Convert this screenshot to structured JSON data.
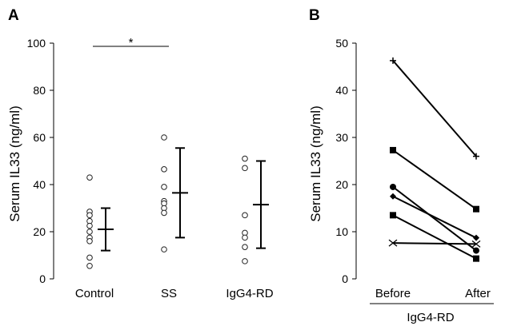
{
  "chart_data": [
    {
      "panel": "A",
      "type": "scatter",
      "ylabel": "Serum IL33 (ng/ml)",
      "ylim": [
        0,
        100
      ],
      "yticks": [
        0,
        20,
        40,
        60,
        80,
        100
      ],
      "categories": [
        "Control",
        "SS",
        "IgG4-RD"
      ],
      "points": [
        [
          43,
          28.5,
          27,
          24.5,
          22.5,
          20,
          17.5,
          16,
          9,
          5.5
        ],
        [
          60,
          46.5,
          39,
          33,
          32,
          30,
          28,
          12.5
        ],
        [
          51,
          47,
          27,
          19.5,
          17.5,
          13.5,
          7.5
        ]
      ],
      "means": [
        21,
        36.5,
        31.5
      ],
      "sd_low": [
        12,
        17.5,
        13
      ],
      "sd_high": [
        30,
        55.5,
        50
      ],
      "significance": {
        "from": "Control",
        "to": "SS",
        "label": "*"
      }
    },
    {
      "panel": "B",
      "type": "line",
      "ylabel": "Serum IL33 (ng/ml)",
      "xlabel": "IgG4-RD",
      "ylim": [
        0,
        50
      ],
      "yticks": [
        0,
        10,
        20,
        30,
        40,
        50
      ],
      "categories": [
        "Before",
        "After"
      ],
      "series": [
        {
          "marker": "plus",
          "values": [
            46.3,
            26
          ]
        },
        {
          "marker": "square",
          "values": [
            27.3,
            14.8
          ]
        },
        {
          "marker": "circle",
          "values": [
            19.5,
            6
          ]
        },
        {
          "marker": "diamond",
          "values": [
            17.5,
            8.7
          ]
        },
        {
          "marker": "square",
          "values": [
            13.5,
            4.3
          ]
        },
        {
          "marker": "cross",
          "values": [
            7.6,
            7.4
          ]
        }
      ]
    }
  ]
}
